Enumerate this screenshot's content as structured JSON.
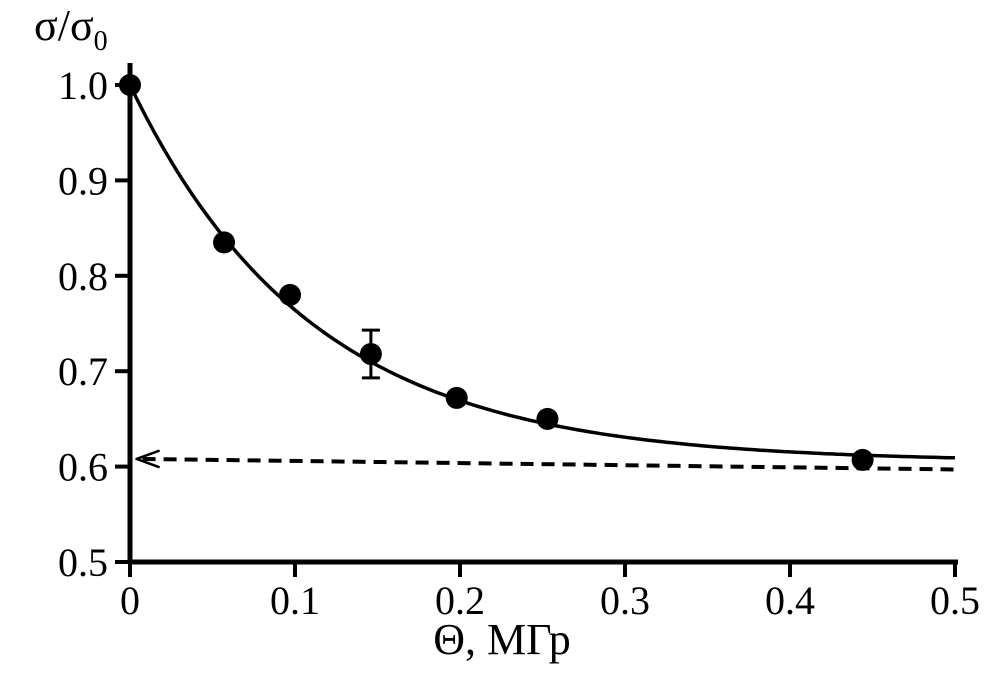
{
  "chart_data": {
    "type": "scatter",
    "title": "",
    "ylabel": {
      "main": "σ/σ",
      "sub": "0"
    },
    "xlabel": "Θ, МГр",
    "xlim": [
      0,
      0.5
    ],
    "ylim": [
      0.5,
      1.0
    ],
    "xticks": [
      0,
      0.1,
      0.2,
      0.3,
      0.4,
      0.5
    ],
    "xtick_labels": [
      "0",
      "0.1",
      "0.2",
      "0.3",
      "0.4",
      "0.5"
    ],
    "yticks": [
      0.5,
      0.6,
      0.7,
      0.8,
      0.9,
      1.0
    ],
    "ytick_labels": [
      "0.5",
      "0.6",
      "0.7",
      "0.8",
      "0.9",
      "1.0"
    ],
    "grid": false,
    "legend": null,
    "marker": {
      "shape": "filled-circle",
      "color": "#000000",
      "radius_px": 11
    },
    "points": [
      {
        "x": 0.0,
        "y": 1.0
      },
      {
        "x": 0.057,
        "y": 0.835
      },
      {
        "x": 0.097,
        "y": 0.78
      },
      {
        "x": 0.146,
        "y": 0.718,
        "yerr": 0.025
      },
      {
        "x": 0.198,
        "y": 0.672
      },
      {
        "x": 0.253,
        "y": 0.65
      },
      {
        "x": 0.444,
        "y": 0.607
      }
    ],
    "fit_curve": {
      "model": "y = baseline + amplitude * exp(-x / tau)",
      "baseline": 0.605,
      "amplitude": 0.395,
      "tau": 0.11,
      "x_start": 0.0,
      "x_end": 0.5,
      "style": "solid"
    },
    "asymptote_line": {
      "x_start": 0.004,
      "y_start": 0.608,
      "x_end": 0.5,
      "y_end": 0.597,
      "style": "dashed",
      "arrow": "left-pointing-at-y-axis"
    },
    "colors": {
      "foreground": "#000000",
      "background": "#ffffff"
    }
  }
}
